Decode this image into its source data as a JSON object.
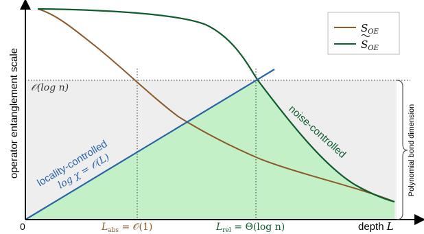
{
  "axes": {
    "ylabel": "operator entanglement scale",
    "xlabel_text": "depth ",
    "xlabel_var": "L",
    "origin": "0"
  },
  "markers": {
    "y_level": "𝒪(log n)",
    "l_abs": "L_abs = 𝒪(1)",
    "l_abs_main": "L",
    "l_abs_sub": "abs",
    "l_abs_rest": " = 𝒪(1)",
    "l_rel": "L_rel = Θ(log n)",
    "l_rel_main": "L",
    "l_rel_sub": "rel",
    "l_rel_rest": " = Θ(log n)"
  },
  "annotations": {
    "locality": "locality-controlled",
    "locality_formula": "log χ = 𝒪(L)",
    "noise": "noise-controlled",
    "bond_dimension": "Polynomial bond dimension"
  },
  "legend": [
    {
      "main": "S",
      "sub": "OE",
      "tilde": false,
      "color": "#8b5a2b"
    },
    {
      "main": "S",
      "sub": "OE",
      "tilde": true,
      "color": "#0f5c2e"
    }
  ],
  "colors": {
    "brown": "#8b5a2b",
    "green": "#0f5c2e",
    "blue": "#2a64a8",
    "light_green": "#c3f0c6",
    "light_gray": "#eeeeee"
  }
}
